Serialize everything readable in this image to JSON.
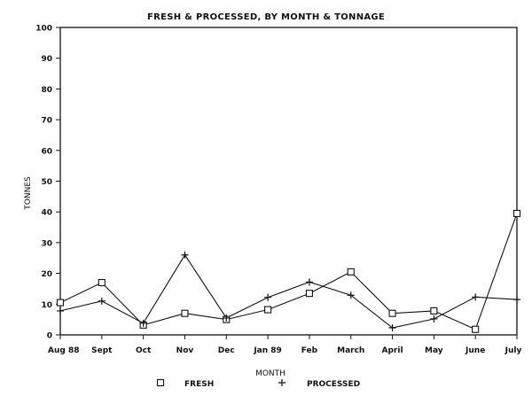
{
  "chart_data": {
    "type": "line",
    "title": "FRESH & PROCESSED, BY MONTH & TONNAGE",
    "xlabel": "MONTH",
    "ylabel": "TONNES",
    "categories": [
      "Aug 88",
      "Sept",
      "Oct",
      "Nov",
      "Dec",
      "Jan 89",
      "Feb",
      "March",
      "April",
      "May",
      "June",
      "July"
    ],
    "ylim": [
      0,
      100
    ],
    "yticks": [
      0,
      10,
      20,
      30,
      40,
      50,
      60,
      70,
      80,
      90,
      100
    ],
    "grid": false,
    "legend_position": "bottom",
    "series": [
      {
        "name": "FRESH",
        "marker": "square",
        "values": [
          10.5,
          17,
          3.2,
          7,
          5,
          8.2,
          13.5,
          20.5,
          7,
          7.8,
          1.8,
          39.5
        ]
      },
      {
        "name": "PROCESSED",
        "marker": "plus",
        "values": [
          7.8,
          11,
          3.8,
          26,
          5.5,
          12.2,
          17.2,
          12.9,
          2.3,
          5.2,
          12.3,
          11.5
        ]
      }
    ]
  }
}
